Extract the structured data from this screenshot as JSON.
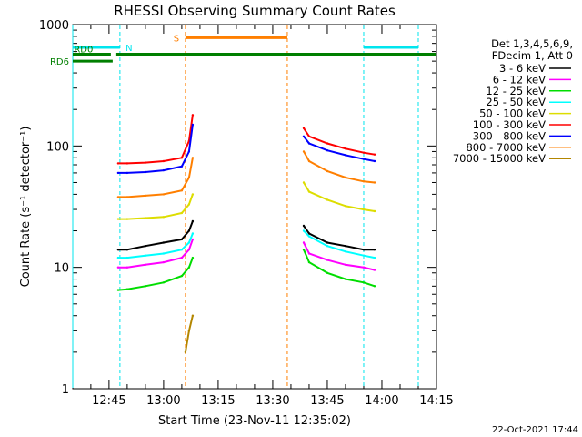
{
  "colors": {
    "c3_6": "#000000",
    "c6_12": "#ff00ff",
    "c12_25": "#00dd00",
    "c25_50": "#00ffff",
    "c50_100": "#dddd00",
    "c100_300": "#ff0000",
    "c300_800": "#0000ff",
    "c800_7000": "#ff7f00",
    "c7000_15000": "#b38600",
    "N": "#00e5ee",
    "S": "#ff7f00",
    "RD": "#007f00"
  },
  "date_stamp": "22-Oct-2021 17:44",
  "chart_data": {
    "type": "line",
    "title": "RHESSI Observing Summary Count Rates",
    "xlabel": "Start Time (23-Nov-11 12:35:02)",
    "ylabel": "Count Rate (s⁻¹ detector⁻¹)",
    "y_scale": "log",
    "ylim": [
      1,
      1000
    ],
    "yticks": [
      "1",
      "10",
      "100",
      "1000"
    ],
    "xlim": [
      "12:35:02",
      "14:15"
    ],
    "xticks": [
      "12:45",
      "13:00",
      "13:15",
      "13:30",
      "13:45",
      "14:00",
      "14:15"
    ],
    "legend_position": "right",
    "legend_header": [
      "Det 1,3,4,5,6,9,",
      "FDecim 1, Att 0"
    ],
    "series": [
      {
        "name": "3 - 6 keV",
        "color": "#000000",
        "segments": [
          {
            "x": [
              "12:47:30",
              "12:50",
              "12:55",
              "13:00",
              "13:05",
              "13:07",
              "13:08"
            ],
            "y": [
              14,
              14,
              15,
              16,
              17,
              20,
              24
            ]
          },
          {
            "x": [
              "13:38:30",
              "13:40",
              "13:45",
              "13:50",
              "13:55",
              "13:58"
            ],
            "y": [
              22,
              19,
              16,
              15,
              14,
              14
            ]
          }
        ]
      },
      {
        "name": "6 - 12 keV",
        "color": "#ff00ff",
        "segments": [
          {
            "x": [
              "12:47:30",
              "12:50",
              "12:55",
              "13:00",
              "13:05",
              "13:07",
              "13:08"
            ],
            "y": [
              10,
              10,
              10.5,
              11,
              12,
              14,
              17
            ]
          },
          {
            "x": [
              "13:38:30",
              "13:40",
              "13:45",
              "13:50",
              "13:55",
              "13:58"
            ],
            "y": [
              16,
              13,
              11.5,
              10.5,
              10,
              9.5
            ]
          }
        ]
      },
      {
        "name": "12 - 25 keV",
        "color": "#00dd00",
        "segments": [
          {
            "x": [
              "12:47:30",
              "12:50",
              "12:55",
              "13:00",
              "13:05",
              "13:07",
              "13:08"
            ],
            "y": [
              6.5,
              6.6,
              7,
              7.5,
              8.5,
              10,
              12
            ]
          },
          {
            "x": [
              "13:38:30",
              "13:40",
              "13:45",
              "13:50",
              "13:55",
              "13:58"
            ],
            "y": [
              14,
              11,
              9,
              8,
              7.5,
              7
            ]
          }
        ]
      },
      {
        "name": "25 - 50 keV",
        "color": "#00ffff",
        "segments": [
          {
            "x": [
              "12:47:30",
              "12:50",
              "12:55",
              "13:00",
              "13:05",
              "13:07",
              "13:08"
            ],
            "y": [
              12,
              12,
              12.5,
              13,
              14,
              16,
              19
            ]
          },
          {
            "x": [
              "13:38:30",
              "13:40",
              "13:45",
              "13:50",
              "13:55",
              "13:58"
            ],
            "y": [
              20,
              18,
              15,
              13.5,
              12.5,
              12
            ]
          }
        ]
      },
      {
        "name": "50 - 100 keV",
        "color": "#dddd00",
        "segments": [
          {
            "x": [
              "12:47:30",
              "12:50",
              "12:55",
              "13:00",
              "13:05",
              "13:07",
              "13:08"
            ],
            "y": [
              25,
              25,
              25.5,
              26,
              28,
              33,
              40
            ]
          },
          {
            "x": [
              "13:38:30",
              "13:40",
              "13:45",
              "13:50",
              "13:55",
              "13:58"
            ],
            "y": [
              50,
              42,
              36,
              32,
              30,
              29
            ]
          }
        ]
      },
      {
        "name": "100 - 300 keV",
        "color": "#ff0000",
        "segments": [
          {
            "x": [
              "12:47:30",
              "12:50",
              "12:55",
              "13:00",
              "13:05",
              "13:07",
              "13:08"
            ],
            "y": [
              72,
              72,
              73,
              75,
              80,
              110,
              180
            ]
          },
          {
            "x": [
              "13:38:30",
              "13:40",
              "13:45",
              "13:50",
              "13:55",
              "13:58"
            ],
            "y": [
              140,
              120,
              105,
              95,
              88,
              85
            ]
          }
        ]
      },
      {
        "name": "300 - 800 keV",
        "color": "#0000ff",
        "segments": [
          {
            "x": [
              "12:47:30",
              "12:50",
              "12:55",
              "13:00",
              "13:05",
              "13:07",
              "13:08"
            ],
            "y": [
              60,
              60,
              61,
              63,
              68,
              90,
              150
            ]
          },
          {
            "x": [
              "13:38:30",
              "13:40",
              "13:45",
              "13:50",
              "13:55",
              "13:58"
            ],
            "y": [
              120,
              105,
              92,
              84,
              78,
              75
            ]
          }
        ]
      },
      {
        "name": "800 - 7000 keV",
        "color": "#ff7f00",
        "segments": [
          {
            "x": [
              "12:47:30",
              "12:50",
              "12:55",
              "13:00",
              "13:05",
              "13:07",
              "13:08"
            ],
            "y": [
              38,
              38,
              39,
              40,
              43,
              55,
              80
            ]
          },
          {
            "x": [
              "13:38:30",
              "13:40",
              "13:45",
              "13:50",
              "13:55",
              "13:58"
            ],
            "y": [
              90,
              75,
              62,
              55,
              51,
              50
            ]
          }
        ]
      },
      {
        "name": "7000 - 15000 keV",
        "color": "#b38600",
        "segments": [
          {
            "x": [
              "13:06",
              "13:07",
              "13:08"
            ],
            "y": [
              2,
              3,
              4
            ]
          }
        ]
      }
    ],
    "annotations": [
      {
        "label": "N",
        "color": "#00e5ee",
        "bars": [
          [
            "12:35:02",
            "12:48"
          ],
          [
            "13:55",
            "14:10"
          ]
        ],
        "y": 650,
        "vlines": [
          "12:35:02",
          "12:48",
          "13:55",
          "14:10"
        ]
      },
      {
        "label": "S",
        "color": "#ff7f00",
        "bars": [
          [
            "13:06",
            "13:34"
          ]
        ],
        "y": 780,
        "vlines": [
          "13:06",
          "13:34"
        ]
      },
      {
        "label": "RD0",
        "color": "#007f00",
        "bars": [
          [
            "12:35:02",
            "12:45:30"
          ],
          [
            "12:47",
            "14:15"
          ]
        ],
        "y": 570,
        "vlines": []
      },
      {
        "label": "RD6",
        "color": "#007f00",
        "bars": [
          [
            "12:35:02",
            "12:46"
          ]
        ],
        "y": 500,
        "vlines": []
      }
    ]
  }
}
